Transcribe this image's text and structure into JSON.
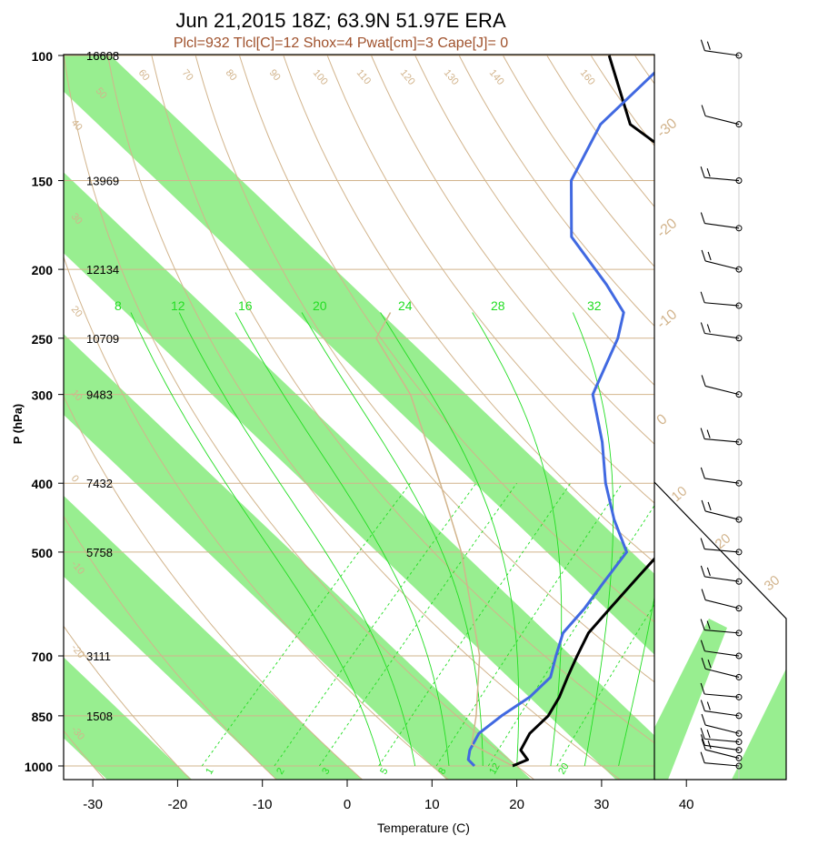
{
  "chart_data": {
    "type": "skewt",
    "title": "Jun 21,2015 18Z; 63.9N 51.97E ERA",
    "subtitle": "Plcl=932 Tlcl[C]=12 Shox=4 Pwat[cm]=3 Cape[J]= 0",
    "xlabel": "Temperature (C)",
    "ylabel": "P (hPa)",
    "xlim": [
      -33,
      51
    ],
    "ylim": [
      1050,
      100
    ],
    "x_ticks": [
      -30,
      -20,
      -10,
      0,
      10,
      20,
      30,
      40
    ],
    "pressure_levels": [
      {
        "p": 100,
        "label": "100",
        "height": "16608"
      },
      {
        "p": 150,
        "label": "150",
        "height": "13969"
      },
      {
        "p": 200,
        "label": "200",
        "height": "12134"
      },
      {
        "p": 250,
        "label": "250",
        "height": "10709"
      },
      {
        "p": 300,
        "label": "300",
        "height": "9483"
      },
      {
        "p": 400,
        "label": "400",
        "height": "7432"
      },
      {
        "p": 500,
        "label": "500",
        "height": "5758"
      },
      {
        "p": 700,
        "label": "700",
        "height": "3111"
      },
      {
        "p": 850,
        "label": "850",
        "height": "1508"
      },
      {
        "p": 1000,
        "label": "1000",
        "height": ""
      }
    ],
    "isotherm_labels": [
      "-30",
      "-20",
      "-10",
      "0",
      "10",
      "20",
      "30"
    ],
    "dry_adiabat_labels": [
      "-30",
      "-20",
      "-10",
      "0",
      "10",
      "20",
      "30",
      "40",
      "50",
      "60",
      "70",
      "80",
      "90",
      "100",
      "110",
      "120",
      "130",
      "140",
      "160"
    ],
    "moist_adiabat_labels": [
      "8",
      "12",
      "16",
      "20",
      "24",
      "28",
      "32"
    ],
    "mixing_ratio_labels": [
      "1",
      "2",
      "3",
      "5",
      "8",
      "12",
      "20"
    ],
    "series": [
      {
        "name": "temperature",
        "color": "#000000",
        "points": [
          [
            1000,
            19.5
          ],
          [
            980,
            20.5
          ],
          [
            950,
            18.5
          ],
          [
            900,
            17.5
          ],
          [
            850,
            17.5
          ],
          [
            800,
            16.5
          ],
          [
            750,
            15.0
          ],
          [
            700,
            13.5
          ],
          [
            650,
            12.0
          ],
          [
            600,
            11.5
          ],
          [
            550,
            11.0
          ],
          [
            500,
            10.5
          ],
          [
            450,
            9.0
          ],
          [
            400,
            7.0
          ],
          [
            350,
            5.0
          ],
          [
            300,
            -2.0
          ],
          [
            260,
            -9.0
          ],
          [
            230,
            -14.0
          ],
          [
            210,
            -17.0
          ],
          [
            200,
            -20.0
          ],
          [
            180,
            -22.0
          ],
          [
            150,
            -30.0
          ],
          [
            125,
            -46.0
          ],
          [
            100,
            -57.0
          ]
        ]
      },
      {
        "name": "dewpoint",
        "color": "#4169e1",
        "points": [
          [
            1000,
            15.0
          ],
          [
            980,
            13.5
          ],
          [
            950,
            12.5
          ],
          [
            900,
            11.5
          ],
          [
            850,
            12.0
          ],
          [
            800,
            13.0
          ],
          [
            750,
            13.0
          ],
          [
            700,
            11.0
          ],
          [
            650,
            9.0
          ],
          [
            600,
            8.5
          ],
          [
            550,
            7.5
          ],
          [
            500,
            6.5
          ],
          [
            450,
            1.0
          ],
          [
            400,
            -4.5
          ],
          [
            350,
            -10.0
          ],
          [
            300,
            -17.0
          ],
          [
            250,
            -21.0
          ],
          [
            230,
            -23.5
          ],
          [
            210,
            -29.0
          ],
          [
            180,
            -39.0
          ],
          [
            150,
            -46.0
          ],
          [
            125,
            -49.5
          ],
          [
            100,
            -49.5
          ]
        ]
      },
      {
        "name": "parcel",
        "color": "#d2b48c",
        "points": [
          [
            1000,
            19.5
          ],
          [
            932,
            12.0
          ],
          [
            850,
            9.0
          ],
          [
            700,
            2.0
          ],
          [
            500,
            -13.0
          ],
          [
            400,
            -24.0
          ],
          [
            300,
            -38.5
          ],
          [
            250,
            -49.5
          ],
          [
            230,
            -51.0
          ]
        ]
      }
    ],
    "wind_barbs_hpa": [
      100,
      125,
      150,
      175,
      200,
      225,
      250,
      300,
      350,
      400,
      450,
      500,
      550,
      600,
      650,
      700,
      750,
      800,
      850,
      900,
      925,
      950,
      975,
      1000
    ],
    "hodo_labels": [
      "10",
      "20",
      "30"
    ]
  }
}
